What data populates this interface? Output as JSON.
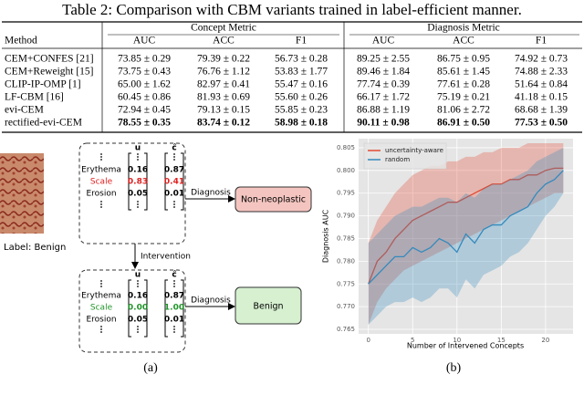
{
  "caption": "Table 2: Comparison with CBM variants trained in label-efficient manner.",
  "table": {
    "groups": [
      "Concept Metric",
      "Diagnosis Metric"
    ],
    "columns": [
      "Method",
      "AUC",
      "ACC",
      "F1",
      "AUC",
      "ACC",
      "F1"
    ],
    "rows": [
      [
        "CEM+CONFES [21]",
        "73.85 ± 0.29",
        "79.39 ± 0.22",
        "56.73 ± 0.28",
        "89.25 ± 2.55",
        "86.75 ± 0.95",
        "74.92 ± 0.73"
      ],
      [
        "CEM+Reweight [15]",
        "73.75 ± 0.43",
        "76.76 ± 1.12",
        "53.83 ± 1.77",
        "89.46 ± 1.84",
        "85.61 ± 1.45",
        "74.88 ± 2.33"
      ],
      [
        "CLIP-IP-OMP [1]",
        "65.00 ± 1.62",
        "82.97 ± 0.41",
        "55.47 ± 0.16",
        "77.74 ± 0.39",
        "77.61 ± 0.28",
        "51.64 ± 0.84"
      ],
      [
        "LF-CBM [16]",
        "60.45 ± 0.86",
        "81.93 ± 0.69",
        "55.60 ± 0.26",
        "66.17 ± 1.72",
        "75.19 ± 0.21",
        "41.18 ± 0.15"
      ],
      [
        "evi-CEM",
        "72.94 ± 0.45",
        "79.13 ± 0.15",
        "55.85 ± 0.23",
        "86.88 ± 1.19",
        "81.06 ± 2.72",
        "68.68 ± 1.39"
      ],
      [
        "rectified-evi-CEM",
        "78.55 ± 0.35",
        "83.74 ± 0.12",
        "58.98 ± 0.18",
        "90.11 ± 0.98",
        "86.91 ± 0.50",
        "77.53 ± 0.50"
      ]
    ]
  },
  "diagram": {
    "image_label": "Label: Benign",
    "u_header": "u",
    "c_header": "ĉ",
    "top": {
      "concepts": [
        "Erythema",
        "Scale",
        "Erosion"
      ],
      "u": [
        "0.16",
        "0.83",
        "0.05"
      ],
      "c": [
        "0.87",
        "0.41",
        "0.01"
      ]
    },
    "bottom": {
      "concepts": [
        "Erythema",
        "Scale",
        "Erosion"
      ],
      "u": [
        "0.16",
        "0.00",
        "0.05"
      ],
      "c": [
        "0.87",
        "1.00",
        "0.01"
      ]
    },
    "diagnosis_top": "Diagnosis",
    "diagnosis_bottom": "Diagnosis",
    "intervention": "Intervention",
    "result_top": "Non-neoplastic",
    "result_bottom": "Benign",
    "subcaption": "(a)"
  },
  "chart_data": {
    "type": "line",
    "subcaption": "(b)",
    "xlabel": "Number of Intervened Concepts",
    "ylabel": "Diagnosis AUC",
    "x": [
      0,
      1,
      2,
      3,
      4,
      5,
      6,
      7,
      8,
      9,
      10,
      11,
      12,
      13,
      14,
      15,
      16,
      17,
      18,
      19,
      20,
      21,
      22
    ],
    "xlim": [
      -1.1,
      23.1
    ],
    "ylim": [
      0.764,
      0.807
    ],
    "xticks": [
      0,
      5,
      10,
      15,
      20
    ],
    "yticks": [
      0.765,
      {
        "value": 0.77,
        "label": "0.770"
      },
      0.775,
      {
        "value": 0.78,
        "label": "0.780"
      },
      0.785,
      {
        "value": 0.79,
        "label": "0.790"
      },
      0.795,
      {
        "value": 0.8,
        "label": "0.800"
      },
      0.805
    ],
    "grid": true,
    "legend": "upper left",
    "series": [
      {
        "name": "uncertainty-aware",
        "color": "#e24a33",
        "values": [
          0.775,
          0.78,
          0.782,
          0.785,
          0.787,
          0.789,
          0.79,
          0.791,
          0.792,
          0.793,
          0.793,
          0.794,
          0.795,
          0.796,
          0.797,
          0.797,
          0.798,
          0.798,
          0.799,
          0.799,
          0.8,
          0.8005,
          0.8005
        ],
        "upper": [
          0.784,
          0.789,
          0.792,
          0.795,
          0.797,
          0.799,
          0.8,
          0.801,
          0.801,
          0.802,
          0.802,
          0.803,
          0.803,
          0.804,
          0.804,
          0.805,
          0.805,
          0.805,
          0.806,
          0.806,
          0.806,
          0.806,
          0.806
        ],
        "lower": [
          0.766,
          0.771,
          0.774,
          0.776,
          0.778,
          0.779,
          0.78,
          0.781,
          0.782,
          0.783,
          0.784,
          0.785,
          0.786,
          0.787,
          0.788,
          0.789,
          0.79,
          0.791,
          0.792,
          0.793,
          0.794,
          0.795,
          0.795
        ]
      },
      {
        "name": "random",
        "color": "#348abd",
        "values": [
          0.775,
          0.777,
          0.779,
          0.781,
          0.781,
          0.783,
          0.782,
          0.783,
          0.785,
          0.784,
          0.782,
          0.786,
          0.784,
          0.787,
          0.788,
          0.788,
          0.79,
          0.791,
          0.792,
          0.795,
          0.797,
          0.798,
          0.8
        ],
        "upper": [
          0.784,
          0.786,
          0.788,
          0.79,
          0.791,
          0.792,
          0.792,
          0.793,
          0.794,
          0.794,
          0.793,
          0.795,
          0.794,
          0.796,
          0.797,
          0.797,
          0.798,
          0.799,
          0.8,
          0.802,
          0.803,
          0.804,
          0.805
        ],
        "lower": [
          0.766,
          0.768,
          0.77,
          0.771,
          0.771,
          0.772,
          0.771,
          0.772,
          0.774,
          0.774,
          0.772,
          0.776,
          0.774,
          0.777,
          0.778,
          0.779,
          0.781,
          0.782,
          0.784,
          0.787,
          0.79,
          0.792,
          0.795
        ]
      }
    ]
  }
}
